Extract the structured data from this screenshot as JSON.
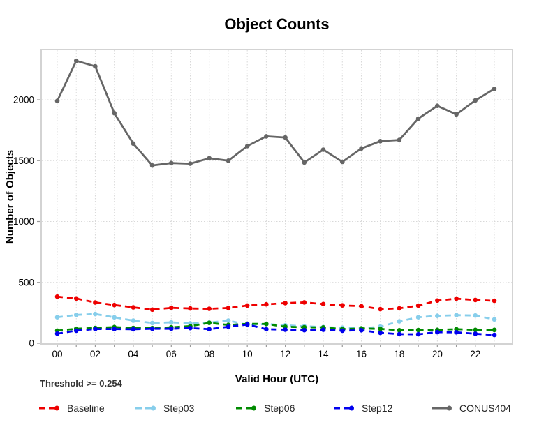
{
  "chart_data": {
    "type": "line",
    "title": "Object Counts",
    "xlabel": "Valid Hour (UTC)",
    "ylabel": "Number of Objects",
    "threshold_label": "Threshold >= 0.254",
    "x": [
      0,
      1,
      2,
      3,
      4,
      5,
      6,
      7,
      8,
      9,
      10,
      11,
      12,
      13,
      14,
      15,
      16,
      17,
      18,
      19,
      20,
      21,
      22,
      23
    ],
    "xtick_labels": [
      "00",
      "02",
      "04",
      "06",
      "08",
      "10",
      "12",
      "14",
      "16",
      "18",
      "20",
      "22"
    ],
    "yticks": [
      0,
      500,
      1000,
      1500,
      2000
    ],
    "ylim": [
      0,
      2413
    ],
    "grid": "dotted",
    "legend_position": "bottom",
    "colors": {
      "grid": "#d8d8d8",
      "border": "#d3d3d3",
      "tick": "#9a9a9a",
      "tick_label": "#000000"
    },
    "series": [
      {
        "name": "Baseline",
        "color": "#EE0000",
        "style": "dashed",
        "values": [
          383,
          368,
          335,
          314,
          295,
          276,
          291,
          286,
          283,
          290,
          310,
          320,
          330,
          336,
          322,
          311,
          305,
          280,
          287,
          309,
          351,
          366,
          356,
          349
        ]
      },
      {
        "name": "Step03",
        "color": "#87CEEB",
        "style": "dashed",
        "values": [
          214,
          233,
          240,
          213,
          186,
          167,
          172,
          164,
          170,
          186,
          152,
          158,
          148,
          140,
          133,
          128,
          122,
          137,
          180,
          214,
          225,
          231,
          228,
          196
        ]
      },
      {
        "name": "Step06",
        "color": "#008B00",
        "style": "dashed",
        "values": [
          104,
          119,
          126,
          133,
          126,
          125,
          131,
          141,
          168,
          151,
          160,
          159,
          136,
          132,
          130,
          117,
          122,
          118,
          107,
          109,
          110,
          116,
          110,
          110
        ]
      },
      {
        "name": "Step12",
        "color": "#0000EE",
        "style": "dashed",
        "values": [
          79,
          104,
          117,
          117,
          115,
          119,
          119,
          125,
          116,
          136,
          154,
          116,
          112,
          108,
          111,
          104,
          107,
          86,
          75,
          74,
          91,
          90,
          78,
          68
        ]
      },
      {
        "name": "CONUS404",
        "color": "#666666",
        "style": "solid",
        "values": [
          1990,
          2320,
          2275,
          1890,
          1640,
          1460,
          1480,
          1475,
          1520,
          1500,
          1620,
          1700,
          1690,
          1485,
          1590,
          1490,
          1600,
          1660,
          1670,
          1845,
          1950,
          1880,
          1995,
          2090
        ]
      }
    ]
  }
}
